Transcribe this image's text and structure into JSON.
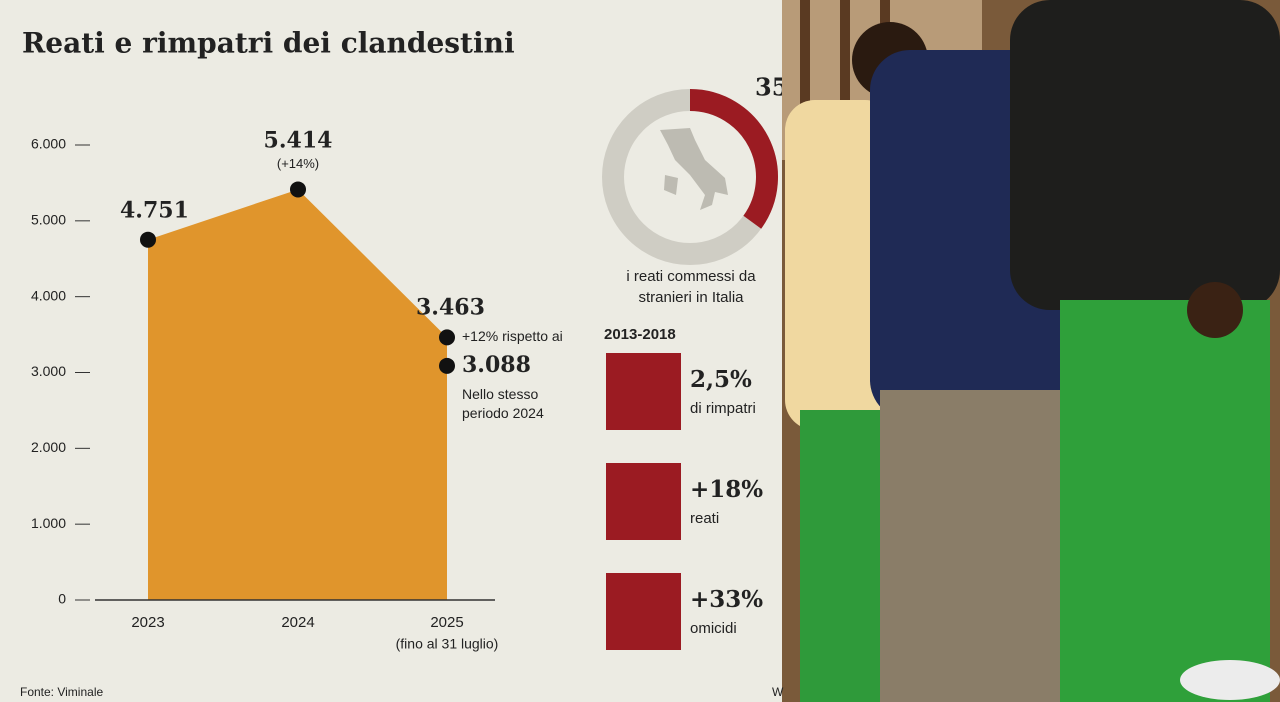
{
  "title": "Reati e rimpatri dei clandestini",
  "chart_data": [
    {
      "type": "area",
      "categories": [
        "2023",
        "2024",
        "2025"
      ],
      "x_note": "(fino al 31 luglio)",
      "values": [
        4751,
        5414,
        3463
      ],
      "value_labels": [
        "4.751",
        "5.414",
        "3.463"
      ],
      "color": "#e0952c",
      "annotations": [
        "(+14%)",
        "+12% rispetto ai"
      ],
      "reference_point": {
        "value": 3088,
        "value_label": "3.088",
        "label": "Nello stesso periodo 2024"
      },
      "ylim": [
        0,
        6000
      ],
      "yticks": [
        0,
        {
          "value": 1000,
          "label": "1.000"
        },
        {
          "value": 2000,
          "label": "2.000"
        },
        {
          "value": 3000,
          "label": "3.000"
        },
        {
          "value": 4000,
          "label": "4.000"
        },
        {
          "value": 5000,
          "label": "5.000"
        },
        {
          "value": 6000,
          "label": "6.000"
        }
      ]
    },
    {
      "type": "donut",
      "values": [
        35
      ],
      "value_labels": [
        "35"
      ],
      "color": "#9b1b22",
      "caption": "i reati commessi da stranieri in Italia"
    }
  ],
  "period": "2013-2018",
  "stats": [
    {
      "value": "2,5%",
      "label": "di rimpatri"
    },
    {
      "value": "+18%",
      "label": "reati"
    },
    {
      "value": "+33%",
      "label": "omicidi"
    }
  ],
  "source": "Fonte: Viminale",
  "credit": "W"
}
